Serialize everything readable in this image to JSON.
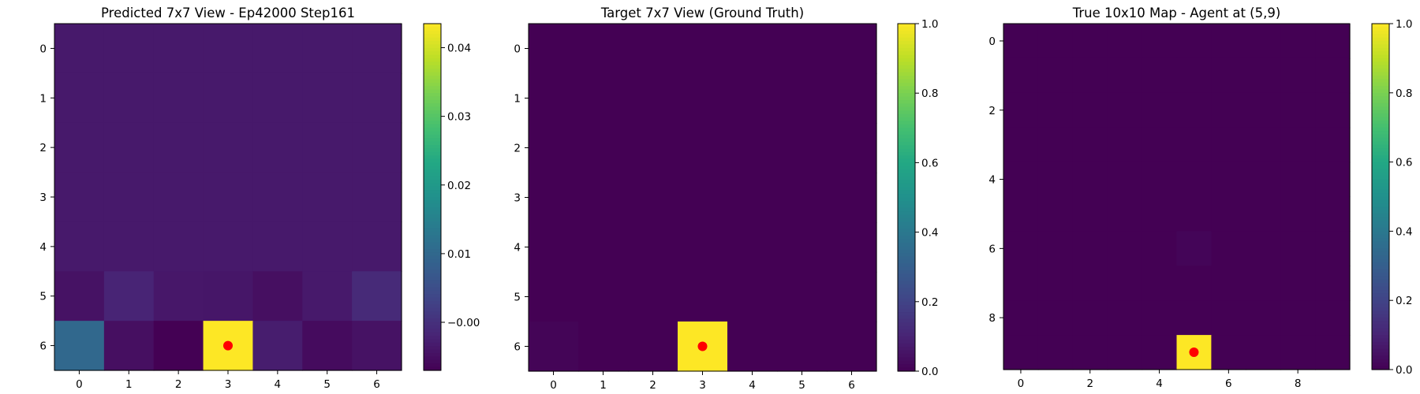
{
  "chart_data": [
    {
      "type": "heatmap",
      "title": "Predicted 7x7 View - Ep42000 Step161",
      "rows": 7,
      "cols": 7,
      "x_ticks": [
        0,
        1,
        2,
        3,
        4,
        5,
        6
      ],
      "y_ticks": [
        0,
        1,
        2,
        3,
        4,
        5,
        6
      ],
      "colorbar": {
        "min": -0.007,
        "max": 0.0435,
        "ticks": [
          -0.0,
          0.01,
          0.02,
          0.03,
          0.04
        ],
        "tick_labels": [
          "−0.00",
          "0.01",
          "0.02",
          "0.03",
          "0.04"
        ]
      },
      "values": [
        [
          -0.0035,
          -0.0035,
          -0.0035,
          -0.0035,
          -0.0035,
          -0.0035,
          -0.0035
        ],
        [
          -0.0035,
          -0.0035,
          -0.0035,
          -0.0035,
          -0.0035,
          -0.0035,
          -0.0035
        ],
        [
          -0.0035,
          -0.0035,
          -0.0035,
          -0.0035,
          -0.0035,
          -0.0035,
          -0.0035
        ],
        [
          -0.0035,
          -0.0035,
          -0.0035,
          -0.0035,
          -0.0035,
          -0.0035,
          -0.0035
        ],
        [
          -0.0035,
          -0.0035,
          -0.0035,
          -0.0035,
          -0.0035,
          -0.0035,
          -0.0035
        ],
        [
          -0.0045,
          -0.002,
          -0.0038,
          -0.004,
          -0.005,
          -0.0035,
          -0.001
        ],
        [
          0.01,
          -0.005,
          -0.007,
          0.0435,
          -0.003,
          -0.0055,
          -0.0045
        ]
      ],
      "marker": {
        "x": 3,
        "y": 6
      }
    },
    {
      "type": "heatmap",
      "title": "Target 7x7 View (Ground Truth)",
      "rows": 7,
      "cols": 7,
      "x_ticks": [
        0,
        1,
        2,
        3,
        4,
        5,
        6
      ],
      "y_ticks": [
        0,
        1,
        2,
        3,
        4,
        5,
        6
      ],
      "colorbar": {
        "min": 0,
        "max": 1,
        "ticks": [
          0.0,
          0.2,
          0.4,
          0.6,
          0.8,
          1.0
        ],
        "tick_labels": [
          "0.0",
          "0.2",
          "0.4",
          "0.6",
          "0.8",
          "1.0"
        ]
      },
      "values": [
        [
          0,
          0,
          0,
          0,
          0,
          0,
          0
        ],
        [
          0,
          0,
          0,
          0,
          0,
          0,
          0
        ],
        [
          0,
          0,
          0,
          0,
          0,
          0,
          0
        ],
        [
          0,
          0,
          0,
          0,
          0,
          0,
          0
        ],
        [
          0,
          0,
          0,
          0,
          0,
          0,
          0
        ],
        [
          0,
          0,
          0,
          0,
          0,
          0,
          0
        ],
        [
          0.01,
          0,
          0,
          1,
          0,
          0,
          0
        ]
      ],
      "marker": {
        "x": 3,
        "y": 6
      }
    },
    {
      "type": "heatmap",
      "title": "True 10x10 Map - Agent at (5,9)",
      "rows": 10,
      "cols": 10,
      "x_ticks": [
        0,
        2,
        4,
        6,
        8
      ],
      "y_ticks": [
        0,
        2,
        4,
        6,
        8
      ],
      "colorbar": {
        "min": 0,
        "max": 1,
        "ticks": [
          0.0,
          0.2,
          0.4,
          0.6,
          0.8,
          1.0
        ],
        "tick_labels": [
          "0.0",
          "0.2",
          "0.4",
          "0.6",
          "0.8",
          "1.0"
        ]
      },
      "values": [
        [
          0,
          0,
          0,
          0,
          0,
          0,
          0,
          0,
          0,
          0
        ],
        [
          0,
          0,
          0,
          0,
          0,
          0,
          0,
          0,
          0,
          0
        ],
        [
          0,
          0,
          0,
          0,
          0,
          0,
          0,
          0,
          0,
          0
        ],
        [
          0,
          0,
          0,
          0,
          0,
          0,
          0,
          0,
          0,
          0
        ],
        [
          0,
          0,
          0,
          0,
          0,
          0,
          0,
          0,
          0,
          0
        ],
        [
          0,
          0,
          0,
          0,
          0,
          0,
          0,
          0,
          0,
          0
        ],
        [
          0,
          0,
          0,
          0,
          0,
          0.012,
          0,
          0,
          0,
          0
        ],
        [
          0,
          0,
          0,
          0,
          0,
          0,
          0,
          0,
          0,
          0
        ],
        [
          0,
          0,
          0,
          0,
          0,
          0,
          0,
          0,
          0,
          0
        ],
        [
          0,
          0,
          0,
          0,
          0,
          1,
          0,
          0,
          0,
          0
        ]
      ],
      "marker": {
        "x": 5,
        "y": 9
      }
    }
  ],
  "colors": {
    "marker": "#ff0000",
    "axis": "#000000",
    "colormap": "viridis"
  }
}
